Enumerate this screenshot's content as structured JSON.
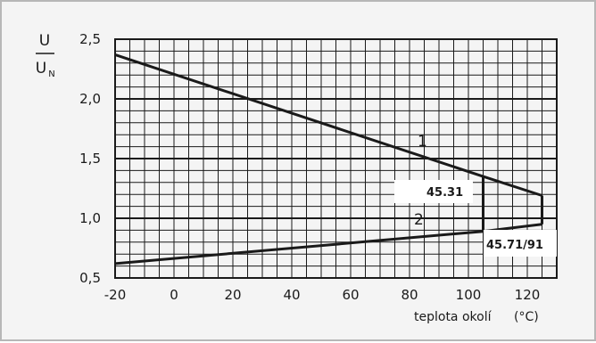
{
  "chart_data": {
    "type": "line",
    "ylabel_top": "U",
    "ylabel_bottom": "U",
    "ylabel_bottom_sub": "N",
    "xlabel": "teplota okolí",
    "xunit": "(°C)",
    "xlim": [
      -20,
      130
    ],
    "ylim": [
      0.5,
      2.5
    ],
    "grid": true,
    "x_ticks": [
      -20,
      0,
      20,
      40,
      60,
      80,
      100,
      120
    ],
    "x_tick_labels": [
      "-20",
      "0",
      "20",
      "40",
      "60",
      "80",
      "100",
      "120"
    ],
    "y_ticks": [
      0.5,
      1.0,
      1.5,
      2.0,
      2.5
    ],
    "y_tick_labels": [
      "0,5",
      "1,0",
      "1,5",
      "2,0",
      "2,5"
    ],
    "series": [
      {
        "name": "1",
        "x": [
          -20,
          105,
          125
        ],
        "y": [
          2.37,
          1.35,
          1.19
        ]
      },
      {
        "name": "2",
        "x": [
          -20,
          105,
          125
        ],
        "y": [
          0.62,
          0.89,
          0.95
        ]
      }
    ],
    "boundaries": [
      {
        "x": 105,
        "y1": 0.89,
        "y2": 1.35
      },
      {
        "x": 125,
        "y1": 0.95,
        "y2": 1.19
      }
    ],
    "annotations": [
      {
        "text": "45.31"
      },
      {
        "text": "45.71/91"
      }
    ]
  }
}
